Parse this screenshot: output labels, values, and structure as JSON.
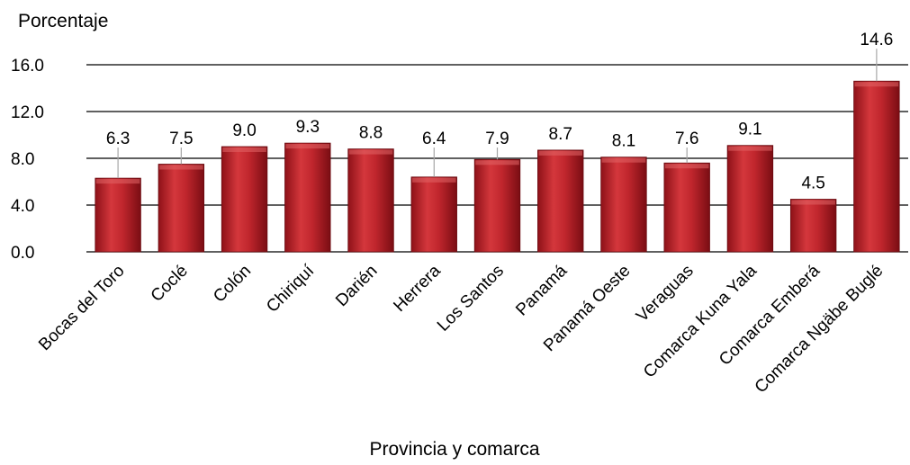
{
  "chart_data": {
    "type": "bar",
    "title": "",
    "ylabel": "Porcentaje",
    "xlabel": "Provincia y comarca",
    "ylim": [
      0,
      16
    ],
    "yticks": [
      "0.0",
      "4.0",
      "8.0",
      "12.0",
      "16.0"
    ],
    "ytick_values": [
      0,
      4,
      8,
      12,
      16
    ],
    "grid": true,
    "bar_color": "#b52028",
    "categories": [
      "Bocas del Toro",
      "Coclé",
      "Colón",
      "Chiriquí",
      "Darién",
      "Herrera",
      "Los Santos",
      "Panamá",
      "Panamá Oeste",
      "Veraguas",
      "Comarca Kuna Yala",
      "Comarca Emberá",
      "Comarca Ngäbe Buglé"
    ],
    "values": [
      6.3,
      7.5,
      9.0,
      9.3,
      8.8,
      6.4,
      7.9,
      8.7,
      8.1,
      7.6,
      9.1,
      4.5,
      14.6
    ],
    "value_labels": [
      "6.3",
      "7.5",
      "9.0",
      "9.3",
      "8.8",
      "6.4",
      "7.9",
      "8.7",
      "8.1",
      "7.6",
      "9.1",
      "4.5",
      "14.6"
    ]
  }
}
